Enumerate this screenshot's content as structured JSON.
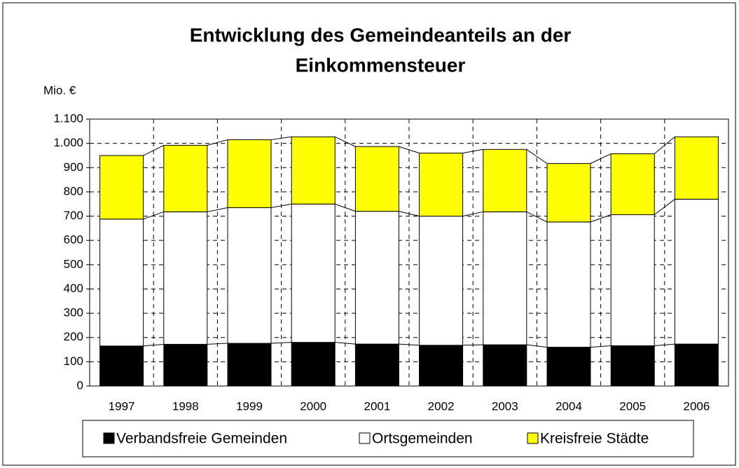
{
  "chart_data": {
    "type": "stacked_bar",
    "title": [
      "Entwicklung des Gemeindeanteils an der",
      "Einkommensteuer"
    ],
    "y_label": "Mio. €",
    "categories": [
      "1997",
      "1998",
      "1999",
      "2000",
      "2001",
      "2002",
      "2003",
      "2004",
      "2005",
      "2006"
    ],
    "series": [
      {
        "name": "Verbandsfreie Gemeinden",
        "color": "#000000",
        "values": [
          165,
          172,
          176,
          180,
          173,
          168,
          170,
          160,
          166,
          173
        ]
      },
      {
        "name": "Ortsgemeinden",
        "color": "#ffffff",
        "values": [
          523,
          546,
          559,
          570,
          547,
          532,
          548,
          516,
          540,
          597
        ]
      },
      {
        "name": "Kreisfreie Städte",
        "color": "#ffff00",
        "values": [
          262,
          274,
          280,
          277,
          267,
          260,
          257,
          241,
          251,
          257
        ]
      }
    ],
    "ylim": [
      0,
      1100
    ],
    "yticks": [
      0,
      100,
      200,
      300,
      400,
      500,
      600,
      700,
      800,
      900,
      {
        "value": 1000,
        "label": "1.000"
      },
      {
        "value": 1100,
        "label": "1.100"
      }
    ],
    "grid": true,
    "legend": "bottom"
  }
}
